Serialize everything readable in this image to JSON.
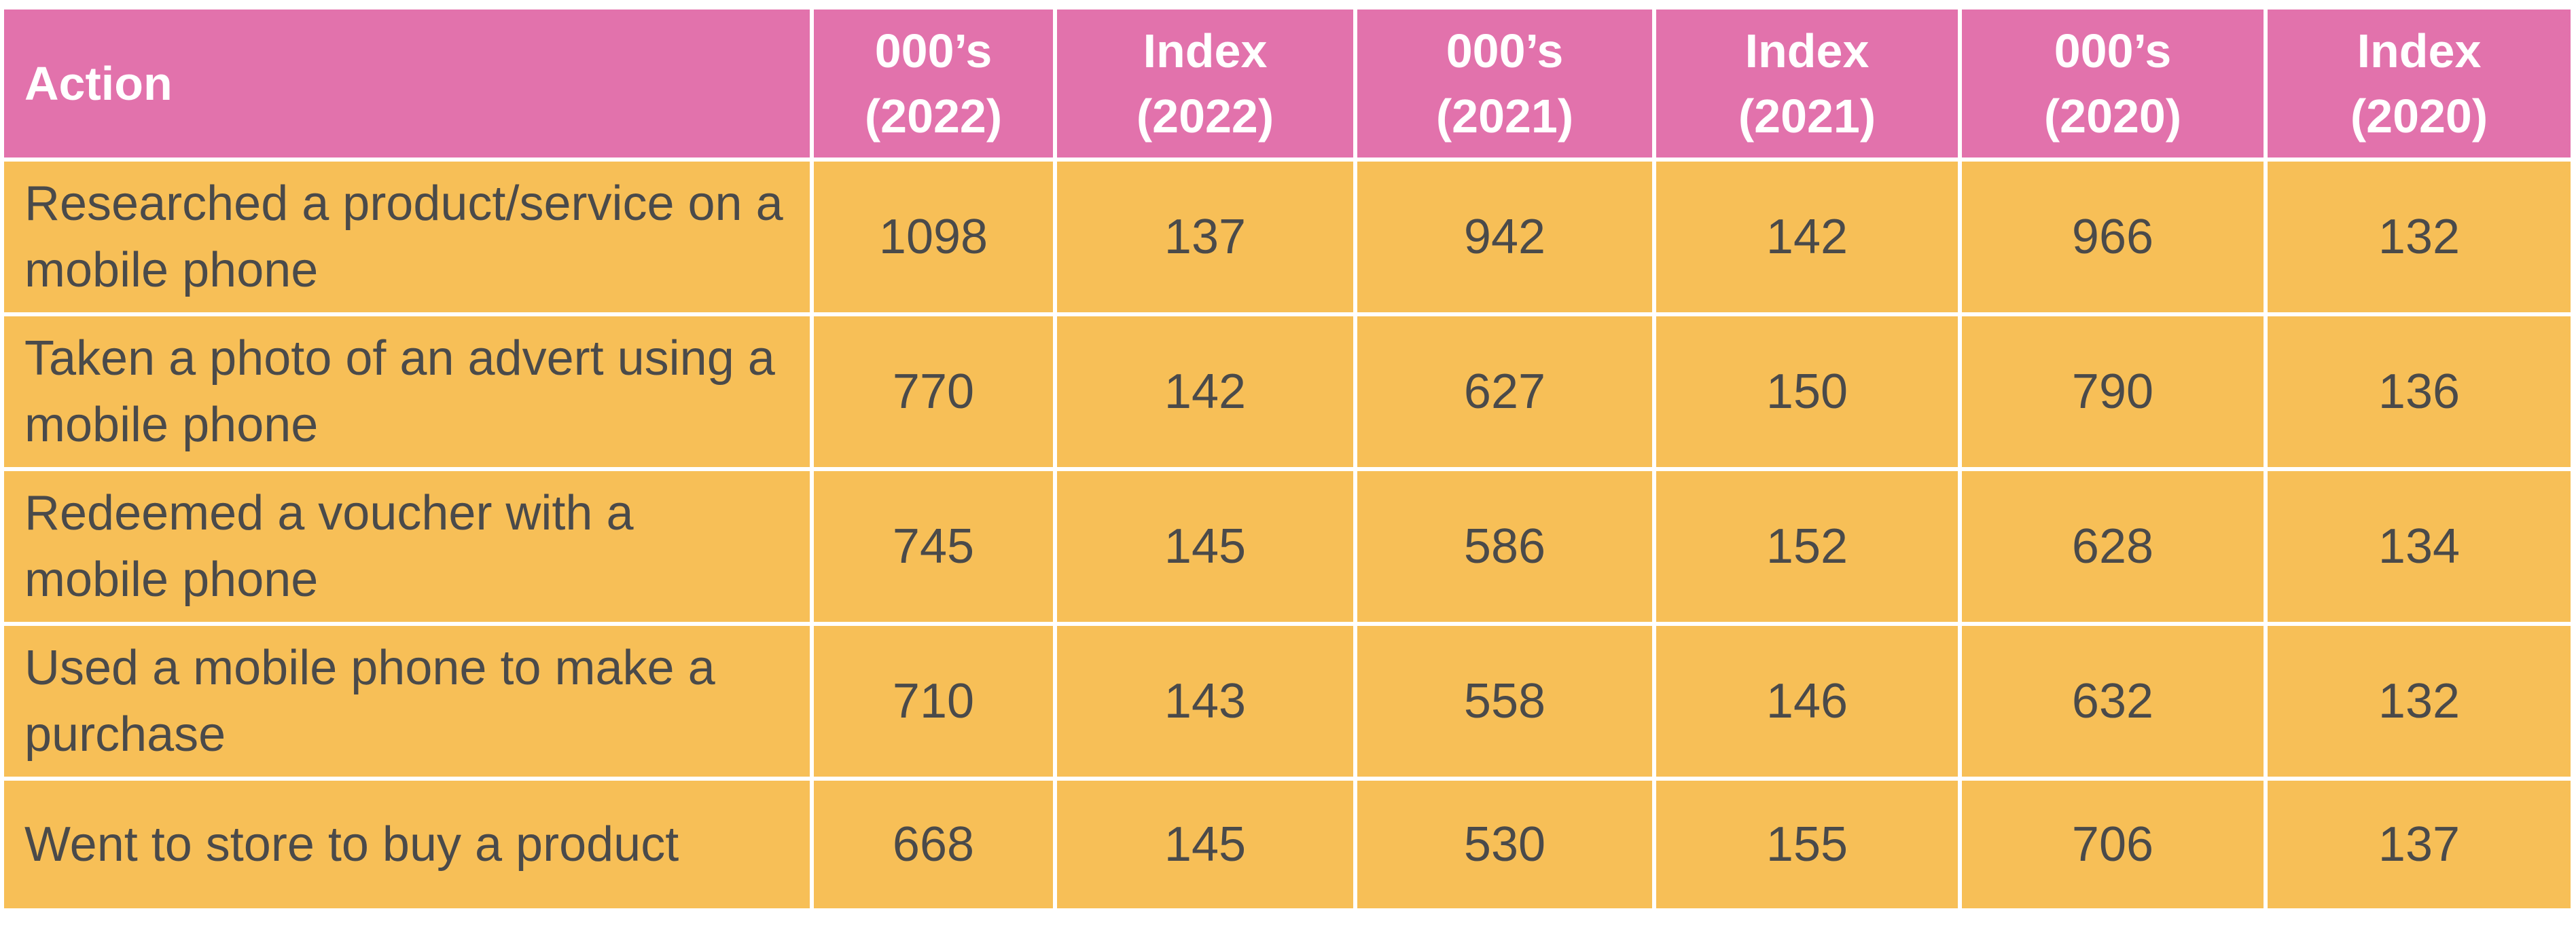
{
  "table": {
    "header": [
      "Action",
      "000’s (2022)",
      "Index (2022)",
      "000’s (2021)",
      "Index (2021)",
      "000’s (2020)",
      "Index (2020)"
    ],
    "rows": [
      [
        "Researched a product/service on a mobile phone",
        1098,
        137,
        942,
        142,
        966,
        132
      ],
      [
        "Taken a photo of an advert using a mobile phone",
        770,
        142,
        627,
        150,
        790,
        136
      ],
      [
        "Redeemed a voucher with a mobile phone",
        745,
        145,
        586,
        152,
        628,
        134
      ],
      [
        "Used a mobile phone to make a purchase",
        710,
        143,
        558,
        146,
        632,
        132
      ],
      [
        "Went to store to buy a product",
        668,
        145,
        530,
        155,
        706,
        137
      ]
    ]
  }
}
